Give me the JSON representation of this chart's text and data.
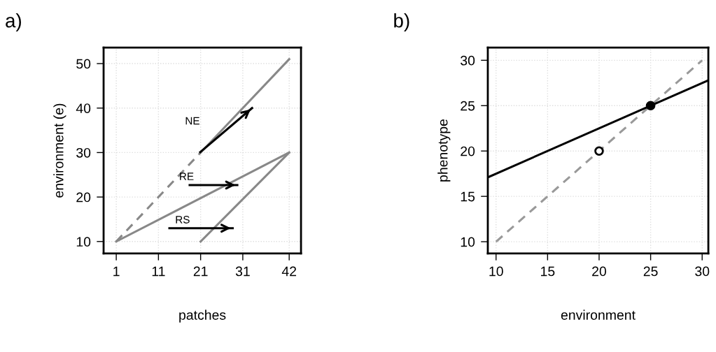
{
  "chart_data": [
    {
      "type": "line",
      "title": "a)",
      "xlabel": "patches",
      "ylabel": "environment (e)",
      "xlim": [
        -2,
        44.8
      ],
      "ylim": [
        7.3,
        53.6
      ],
      "xticks": [
        1,
        11,
        21,
        31,
        42
      ],
      "yticks": [
        10,
        20,
        30,
        40,
        50
      ],
      "grid": true,
      "legend": false,
      "series": [
        {
          "x": [
            1,
            21
          ],
          "values": [
            10,
            30
          ],
          "color": "#888888",
          "line_style": "dashed"
        },
        {
          "x": [
            21,
            42
          ],
          "values": [
            30,
            51
          ],
          "color": "#888888",
          "line_style": "solid"
        },
        {
          "x": [
            1,
            42
          ],
          "values": [
            10,
            30
          ],
          "color": "#888888",
          "line_style": "solid"
        },
        {
          "x": [
            21,
            42
          ],
          "values": [
            10,
            30
          ],
          "color": "#888888",
          "line_style": "solid"
        },
        {
          "x": [
            20.9,
            33.2
          ],
          "values": [
            30.1,
            40
          ],
          "color": "#000000"
        },
        {
          "x": [
            18.4,
            29.7
          ],
          "values": [
            22.7,
            22.7
          ],
          "color": "#000000"
        },
        {
          "x": [
            13.6,
            28.6
          ],
          "values": [
            13,
            13
          ],
          "color": "#000000"
        }
      ],
      "annotations": [
        "NE",
        "RE",
        "RS"
      ]
    },
    {
      "type": "line",
      "title": "b)",
      "xlabel": "environment",
      "ylabel": "phenotype",
      "xlim": [
        9.2,
        30.6
      ],
      "ylim": [
        8.7,
        31.4
      ],
      "xticks": [
        10,
        15,
        20,
        25,
        30
      ],
      "yticks": [
        10,
        15,
        20,
        25,
        30
      ],
      "grid": true,
      "legend": false,
      "series": [
        {
          "x": [
            10,
            30
          ],
          "values": [
            10,
            30
          ],
          "color": "#999999",
          "line_style": "dashed"
        },
        {
          "x": [
            9.2,
            30.6
          ],
          "values": [
            17.1,
            27.8
          ],
          "color": "#000000",
          "line_style": "solid"
        },
        {
          "type": "scatter",
          "x": [
            20,
            25
          ],
          "values": [
            20,
            25
          ],
          "colors": [
            "#ffffff",
            "#000000"
          ],
          "marker": "circle"
        }
      ]
    }
  ]
}
